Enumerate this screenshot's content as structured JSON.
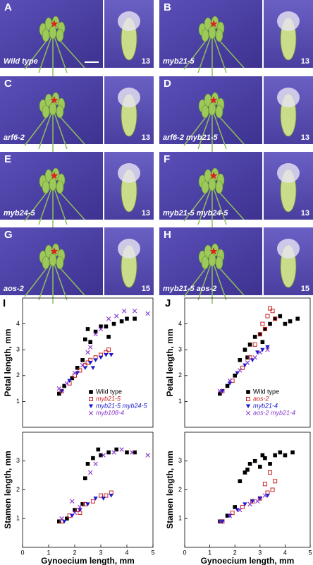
{
  "panels": [
    {
      "letter": "A",
      "label": "Wild type",
      "stage": "13"
    },
    {
      "letter": "B",
      "label": "myb21-5",
      "stage": "13"
    },
    {
      "letter": "C",
      "label": "arf6-2",
      "stage": "13"
    },
    {
      "letter": "D",
      "label": "arf6-2 myb21-5",
      "stage": "13"
    },
    {
      "letter": "E",
      "label": "myb24-5",
      "stage": "13"
    },
    {
      "letter": "F",
      "label": "myb21-5 myb24-5",
      "stage": "13"
    },
    {
      "letter": "G",
      "label": "aos-2",
      "stage": "15"
    },
    {
      "letter": "H",
      "label": "myb21-5 aos-2",
      "stage": "15"
    }
  ],
  "chart_data": [
    {
      "type": "scatter",
      "label": "I",
      "ylabel": "Petal length, mm",
      "xlim": [
        0,
        5
      ],
      "ylim": [
        0,
        5
      ],
      "yticks": [
        1,
        2,
        3,
        4
      ],
      "legend": "lower right",
      "series": [
        {
          "name": "Wild type",
          "color": "#000000",
          "marker": "square",
          "x": [
            1.4,
            1.6,
            1.9,
            2.1,
            2.3,
            2.4,
            2.5,
            2.6,
            2.8,
            3.0,
            3.2,
            3.5,
            3.8,
            4.0,
            4.3,
            3.3
          ],
          "values": [
            1.3,
            1.6,
            1.9,
            2.3,
            2.6,
            3.4,
            3.8,
            3.3,
            3.7,
            3.9,
            3.9,
            4.0,
            4.1,
            4.2,
            4.2,
            3.5
          ]
        },
        {
          "name": "myb21-5",
          "color": "#cc2222",
          "marker": "open-square",
          "x": [
            1.5,
            1.8,
            2.0,
            2.2,
            2.4,
            2.6,
            2.8,
            3.0,
            3.2,
            3.3,
            2.5
          ],
          "values": [
            1.4,
            1.7,
            2.0,
            2.2,
            2.4,
            2.6,
            2.7,
            2.8,
            2.9,
            3.0,
            2.5
          ]
        },
        {
          "name": "myb21-5 myb24-5",
          "color": "#1a1acc",
          "marker": "triangle-down",
          "x": [
            1.5,
            1.8,
            2.1,
            2.4,
            2.6,
            2.8,
            3.0,
            3.2,
            3.4,
            2.7
          ],
          "values": [
            1.4,
            1.8,
            2.1,
            2.3,
            2.5,
            2.6,
            2.7,
            2.8,
            2.8,
            2.3
          ]
        },
        {
          "name": "myb108-4",
          "color": "#8833cc",
          "marker": "x",
          "x": [
            1.4,
            1.7,
            2.0,
            2.3,
            2.6,
            2.8,
            3.0,
            3.3,
            3.6,
            3.9,
            4.3,
            4.8,
            2.5
          ],
          "values": [
            1.5,
            1.7,
            2.1,
            2.4,
            3.1,
            3.6,
            3.8,
            4.2,
            4.3,
            4.5,
            4.5,
            4.4,
            2.9
          ]
        }
      ]
    },
    {
      "type": "scatter",
      "label": "J",
      "ylabel": "Petal length, mm",
      "xlim": [
        0,
        5
      ],
      "ylim": [
        0,
        5
      ],
      "yticks": [
        1,
        2,
        3,
        4
      ],
      "legend": "lower right",
      "series": [
        {
          "name": "Wild type",
          "color": "#000000",
          "marker": "square",
          "x": [
            1.4,
            1.7,
            2.0,
            2.2,
            2.4,
            2.6,
            2.8,
            3.0,
            3.2,
            3.4,
            3.6,
            3.8,
            4.0,
            4.2,
            4.5,
            2.5,
            3.1
          ],
          "values": [
            1.3,
            1.6,
            2.0,
            2.6,
            3.0,
            3.2,
            3.5,
            3.6,
            3.8,
            4.0,
            4.2,
            4.3,
            4.0,
            4.1,
            4.2,
            2.7,
            3.3
          ]
        },
        {
          "name": "aos-2",
          "color": "#cc2222",
          "marker": "open-square",
          "x": [
            1.5,
            1.9,
            2.3,
            2.6,
            2.8,
            3.0,
            3.1,
            3.3,
            3.4,
            3.5,
            3.2,
            3.6
          ],
          "values": [
            1.4,
            1.8,
            2.3,
            2.7,
            3.2,
            3.6,
            4.0,
            4.3,
            4.6,
            4.5,
            3.8,
            4.2
          ]
        },
        {
          "name": "myb21-4",
          "color": "#1a1acc",
          "marker": "triangle-down",
          "x": [
            1.5,
            1.8,
            2.1,
            2.4,
            2.7,
            2.9,
            3.1,
            3.3
          ],
          "values": [
            1.4,
            1.7,
            2.1,
            2.4,
            2.6,
            2.9,
            3.0,
            3.1
          ]
        },
        {
          "name": "aos-2 myb21-4",
          "color": "#8833cc",
          "marker": "x",
          "x": [
            1.4,
            1.8,
            2.2,
            2.5,
            2.8,
            3.0,
            3.3
          ],
          "values": [
            1.4,
            1.8,
            2.2,
            2.5,
            2.7,
            2.9,
            3.0
          ]
        }
      ]
    },
    {
      "type": "scatter",
      "ylabel": "Stamen length, mm",
      "xlabel": "Gynoecium length, mm",
      "xlim": [
        0,
        5
      ],
      "ylim": [
        0,
        4
      ],
      "xticks": [
        0,
        1,
        2,
        3,
        4,
        5
      ],
      "yticks": [
        1,
        2,
        3
      ],
      "series": [
        {
          "name": "Wild type",
          "color": "#000000",
          "marker": "square",
          "x": [
            1.4,
            1.7,
            2.0,
            2.3,
            2.4,
            2.5,
            2.7,
            3.0,
            3.3,
            3.6,
            4.0,
            4.3,
            2.9
          ],
          "values": [
            0.9,
            1.0,
            1.3,
            1.5,
            2.4,
            2.9,
            3.1,
            3.2,
            3.3,
            3.4,
            3.3,
            3.3,
            3.4
          ]
        },
        {
          "name": "myb21-5",
          "color": "#cc2222",
          "marker": "open-square",
          "x": [
            1.5,
            1.8,
            2.1,
            2.4,
            2.7,
            3.0,
            3.2,
            3.4,
            2.2
          ],
          "values": [
            0.9,
            1.1,
            1.3,
            1.5,
            1.6,
            1.8,
            1.8,
            1.9,
            1.2
          ]
        },
        {
          "name": "myb21-5 myb24-5",
          "color": "#1a1acc",
          "marker": "triangle-down",
          "x": [
            1.6,
            1.9,
            2.2,
            2.5,
            2.8,
            3.1,
            3.4
          ],
          "values": [
            0.9,
            1.1,
            1.3,
            1.5,
            1.7,
            1.7,
            1.8
          ]
        },
        {
          "name": "myb108-4",
          "color": "#8833cc",
          "marker": "x",
          "x": [
            1.5,
            1.9,
            2.2,
            2.6,
            2.8,
            3.1,
            3.5,
            3.8,
            4.2,
            4.8,
            2.0
          ],
          "values": [
            1.0,
            1.6,
            1.4,
            2.6,
            2.9,
            3.2,
            3.3,
            3.4,
            3.3,
            3.2,
            1.2
          ]
        }
      ]
    },
    {
      "type": "scatter",
      "ylabel": "Stamen length, mm",
      "xlabel": "Gynoecium length, mm",
      "xlim": [
        0,
        5
      ],
      "ylim": [
        0,
        4
      ],
      "xticks": [
        0,
        1,
        2,
        3,
        4,
        5
      ],
      "yticks": [
        1,
        2,
        3
      ],
      "series": [
        {
          "name": "Wild type",
          "color": "#000000",
          "marker": "square",
          "x": [
            1.4,
            1.7,
            2.0,
            2.2,
            2.4,
            2.6,
            2.8,
            3.0,
            3.2,
            3.4,
            3.6,
            3.8,
            4.0,
            4.3,
            2.5,
            3.1
          ],
          "values": [
            0.9,
            1.1,
            1.4,
            2.3,
            2.6,
            2.9,
            3.0,
            2.8,
            3.1,
            2.9,
            3.2,
            3.3,
            3.2,
            3.3,
            2.7,
            3.2
          ]
        },
        {
          "name": "aos-2",
          "color": "#cc2222",
          "marker": "open-square",
          "x": [
            1.5,
            1.9,
            2.3,
            2.7,
            3.0,
            3.2,
            3.4,
            3.5,
            3.6,
            3.3
          ],
          "values": [
            0.9,
            1.2,
            1.4,
            1.6,
            1.7,
            2.2,
            2.6,
            2.0,
            2.3,
            1.9
          ]
        },
        {
          "name": "myb21-4",
          "color": "#1a1acc",
          "marker": "triangle-down",
          "x": [
            1.5,
            1.8,
            2.1,
            2.4,
            2.7,
            3.0,
            3.3
          ],
          "values": [
            0.9,
            1.1,
            1.3,
            1.5,
            1.6,
            1.7,
            1.8
          ]
        },
        {
          "name": "aos-2 myb21-4",
          "color": "#8833cc",
          "marker": "x",
          "x": [
            1.4,
            1.8,
            2.2,
            2.6,
            2.9,
            3.2
          ],
          "values": [
            0.9,
            1.1,
            1.3,
            1.5,
            1.6,
            1.8
          ]
        }
      ]
    }
  ]
}
